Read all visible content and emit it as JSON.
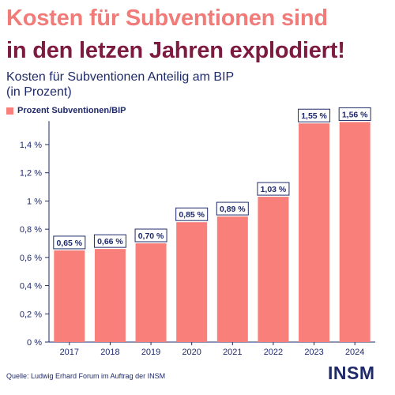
{
  "headline": {
    "line1": "Kosten für Subventionen sind",
    "line2": "in den letzen Jahren explodiert!"
  },
  "subtitle": {
    "line1": "Kosten für Subventionen Anteilig am BIP",
    "line2": "(in Prozent)"
  },
  "colors": {
    "bar": "#f97f7a",
    "headline_accent": "#f07b78",
    "headline_dark": "#7d1a3f",
    "text": "#1f2a6b"
  },
  "chart_data": {
    "type": "bar",
    "categories": [
      "2017",
      "2018",
      "2019",
      "2020",
      "2021",
      "2022",
      "2023",
      "2024"
    ],
    "series": [
      {
        "name": "Prozent Subventionen/BIP",
        "values": [
          0.65,
          0.66,
          0.7,
          0.85,
          0.89,
          1.03,
          1.55,
          1.56
        ]
      }
    ],
    "data_labels": [
      "0,65 %",
      "0,66 %",
      "0,70 %",
      "0,85 %",
      "0,89 %",
      "1,03 %",
      "1,55 %",
      "1,56 %"
    ],
    "y_ticks": [
      0,
      0.2,
      0.4,
      0.6,
      0.8,
      1.0,
      1.2,
      1.4
    ],
    "y_tick_labels": [
      "0 %",
      "0,2 %",
      "0,4 %",
      "0,6 %",
      "0,8 %",
      "1 %",
      "1,2 %",
      "1,4 %"
    ],
    "ylim": [
      0,
      1.6
    ],
    "legend_position": "top-left",
    "grid": false
  },
  "source": "Quelle: Ludwig Erhard Forum im Auftrag der INSM",
  "logo_text": "INSM"
}
